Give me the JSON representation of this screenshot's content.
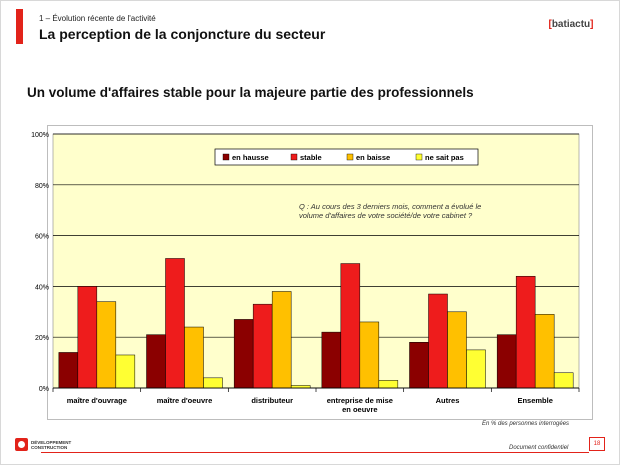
{
  "header": {
    "section": "1 – Évolution récente de l'activité",
    "title": "La perception de la conjoncture du secteur",
    "logo": "batiactu"
  },
  "subtitle": "Un volume d'affaires stable pour la majeure partie des professionnels",
  "chart_data": {
    "type": "bar",
    "title": "",
    "xlabel": "",
    "ylabel": "",
    "ylim": [
      0,
      100
    ],
    "yticks": [
      "0%",
      "20%",
      "40%",
      "60%",
      "80%",
      "100%"
    ],
    "legend_position": "top-center",
    "categories": [
      "maître d'ouvrage",
      "maître d'oeuvre",
      "distributeur",
      "entreprise de mise en oeuvre",
      "Autres",
      "Ensemble"
    ],
    "category_lines": [
      [
        "maître d'ouvrage"
      ],
      [
        "maître d'oeuvre"
      ],
      [
        "distributeur"
      ],
      [
        "entreprise de mise",
        "en oeuvre"
      ],
      [
        "Autres"
      ],
      [
        "Ensemble"
      ]
    ],
    "series": [
      {
        "name": "en hausse",
        "color": "#8b0000",
        "values": [
          14,
          21,
          27,
          22,
          18,
          21
        ]
      },
      {
        "name": "stable",
        "color": "#ee1c1c",
        "values": [
          40,
          51,
          33,
          49,
          37,
          44
        ]
      },
      {
        "name": "en baisse",
        "color": "#ffc000",
        "values": [
          34,
          24,
          38,
          26,
          30,
          29
        ]
      },
      {
        "name": "ne sait pas",
        "color": "#ffff33",
        "values": [
          13,
          4,
          1,
          3,
          15,
          6
        ]
      }
    ],
    "annotation": [
      "Q : Au cours des 3 derniers mois, comment a évolué le",
      "volume d'affaires de votre société/de votre cabinet ?"
    ],
    "grid": true,
    "plot_background": "#ffffcc"
  },
  "footnote": "En % des personnes interrogées",
  "footer": {
    "company_line1": "DÉVELOPPEMENT",
    "company_line2": "CONSTRUCTION",
    "confidential": "Document confidentiel",
    "page": "18"
  },
  "colors": {
    "accent": "#e2231a"
  }
}
